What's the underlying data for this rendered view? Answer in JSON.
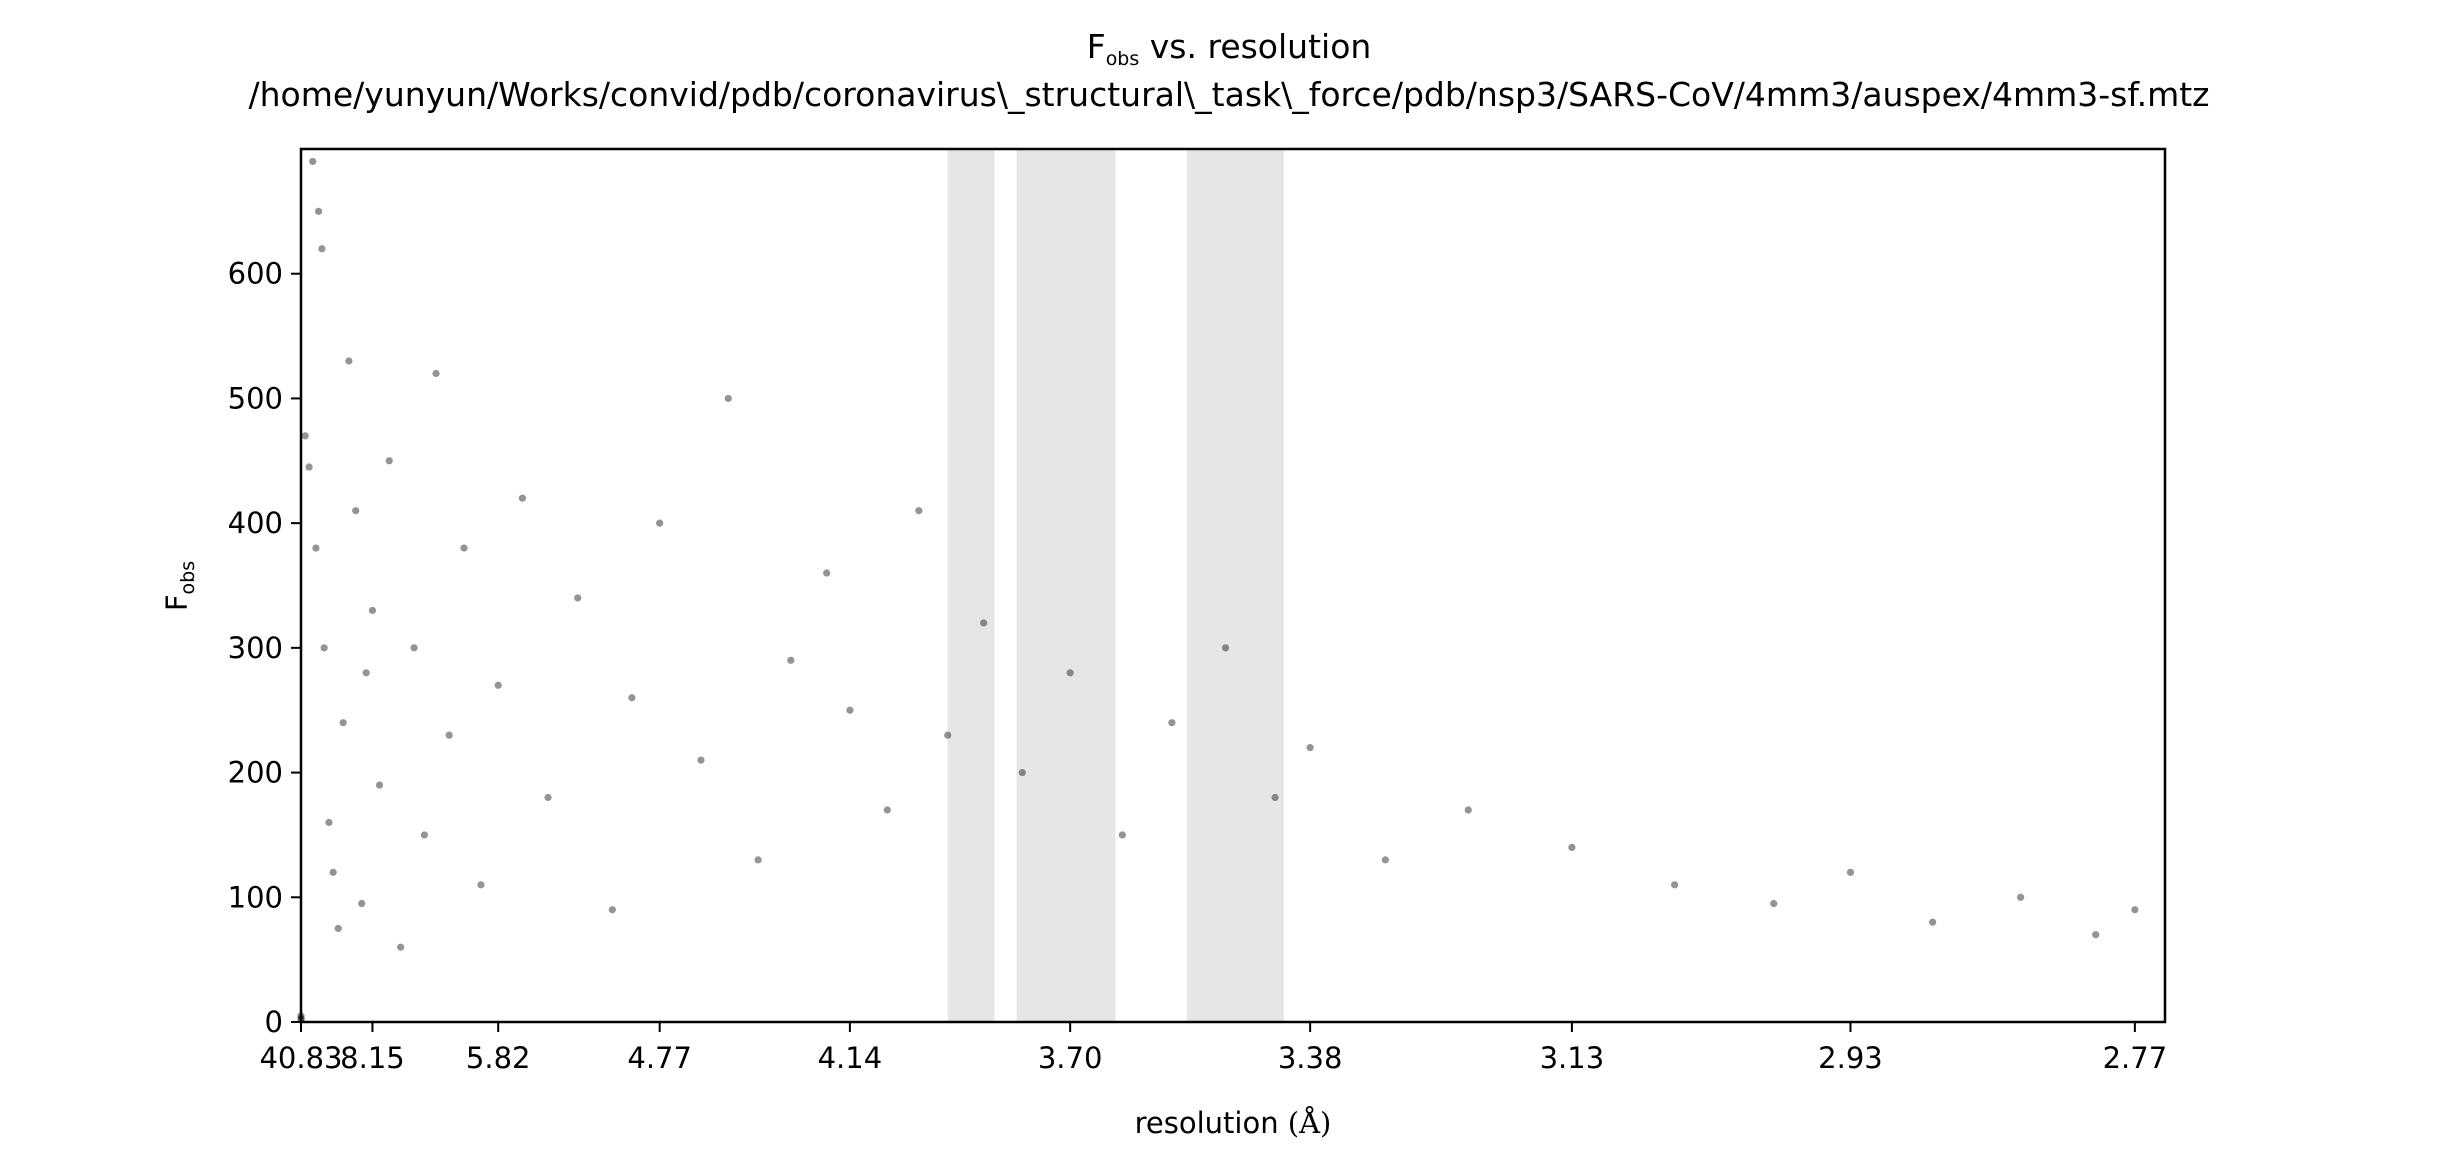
{
  "chart_data": {
    "type": "scatter",
    "title": {
      "symbol": "F",
      "symbol_subscript": "obs",
      "rest": " vs. resolution",
      "path": "/home/yunyun/Works/convid/pdb/coronavirus\\_structural\\_task\\_force/pdb/nsp3/SARS-CoV/4mm3/auspex/4mm3-sf.mtz"
    },
    "xlabel": {
      "text": "resolution ",
      "unit": "(Å)"
    },
    "ylabel": {
      "symbol": "F",
      "subscript": "obs"
    },
    "x_scale": "inverse-cube (d^-3)",
    "xlim": [
      40.83,
      2.755
    ],
    "ylim": [
      0,
      700
    ],
    "x_ticks": [
      "40.83",
      "8.15",
      "5.82",
      "4.77",
      "4.14",
      "3.70",
      "3.38",
      "3.13",
      "2.93",
      "2.77"
    ],
    "y_ticks": [
      "0",
      "100",
      "200",
      "300",
      "400",
      "500",
      "600"
    ],
    "grid": false,
    "legend": "none",
    "ice_ring_bands": [
      {
        "from": 3.92,
        "to": 3.83
      },
      {
        "from": 3.79,
        "to": 3.63
      },
      {
        "from": 3.53,
        "to": 3.41
      }
    ],
    "colors": {
      "points": "#000000",
      "bands": "#e6e6e6",
      "axes": "#000000"
    },
    "series": [
      {
        "marker_opacity": 0.42,
        "points": [
          [
            40.83,
            5
          ],
          [
            40.2,
            3
          ],
          [
            38.5,
            2
          ],
          [
            20.1,
            470
          ],
          [
            16.5,
            445
          ],
          [
            14.7,
            690
          ],
          [
            13.6,
            380
          ],
          [
            12.9,
            650
          ],
          [
            12.2,
            620
          ],
          [
            11.8,
            300
          ],
          [
            11.1,
            160
          ],
          [
            10.6,
            120
          ],
          [
            10.1,
            75
          ],
          [
            9.7,
            240
          ],
          [
            9.3,
            530
          ],
          [
            8.9,
            410
          ],
          [
            8.6,
            95
          ],
          [
            8.4,
            280
          ],
          [
            8.15,
            330
          ],
          [
            7.9,
            190
          ],
          [
            7.6,
            450
          ],
          [
            7.3,
            60
          ],
          [
            7.0,
            300
          ],
          [
            6.8,
            150
          ],
          [
            6.6,
            520
          ],
          [
            6.4,
            230
          ],
          [
            6.2,
            380
          ],
          [
            6.0,
            110
          ],
          [
            5.82,
            270
          ],
          [
            5.6,
            420
          ],
          [
            5.4,
            180
          ],
          [
            5.2,
            340
          ],
          [
            5.0,
            90
          ],
          [
            4.9,
            260
          ],
          [
            4.77,
            400
          ],
          [
            4.6,
            210
          ],
          [
            4.5,
            500
          ],
          [
            4.4,
            130
          ],
          [
            4.3,
            290
          ],
          [
            4.2,
            360
          ],
          [
            4.14,
            250
          ],
          [
            4.05,
            170
          ],
          [
            3.98,
            410
          ],
          [
            3.92,
            230
          ],
          [
            3.85,
            320
          ],
          [
            3.78,
            200
          ],
          [
            3.7,
            280
          ],
          [
            3.62,
            150
          ],
          [
            3.55,
            240
          ],
          [
            3.48,
            300
          ],
          [
            3.42,
            180
          ],
          [
            3.38,
            220
          ],
          [
            3.3,
            130
          ],
          [
            3.22,
            170
          ],
          [
            3.13,
            140
          ],
          [
            3.05,
            110
          ],
          [
            2.98,
            95
          ],
          [
            2.93,
            120
          ],
          [
            2.88,
            80
          ],
          [
            2.83,
            100
          ],
          [
            2.79,
            70
          ],
          [
            2.77,
            90
          ]
        ]
      }
    ]
  }
}
